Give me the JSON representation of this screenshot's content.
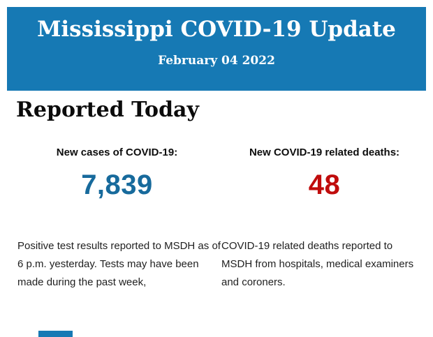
{
  "header": {
    "title": "Mississippi COVID-19 Update",
    "date": "February 04 2022",
    "background_color": "#1679b4",
    "text_color": "#ffffff"
  },
  "section": {
    "heading": "Reported Today"
  },
  "stats": {
    "cases": {
      "label": "New cases of COVID-19:",
      "value": "7,839",
      "value_color": "#176a9c",
      "description": "Positive test results reported to MSDH as of 6 p.m. yesterday. Tests may have been made during the past week,"
    },
    "deaths": {
      "label": "New COVID-19 related deaths:",
      "value": "48",
      "value_color": "#c00c0c",
      "description": "COVID-19 related deaths reported to MSDH from hospitals, medical examiners and coroners."
    }
  },
  "footer": {
    "fragment_color": "#1679b4"
  }
}
